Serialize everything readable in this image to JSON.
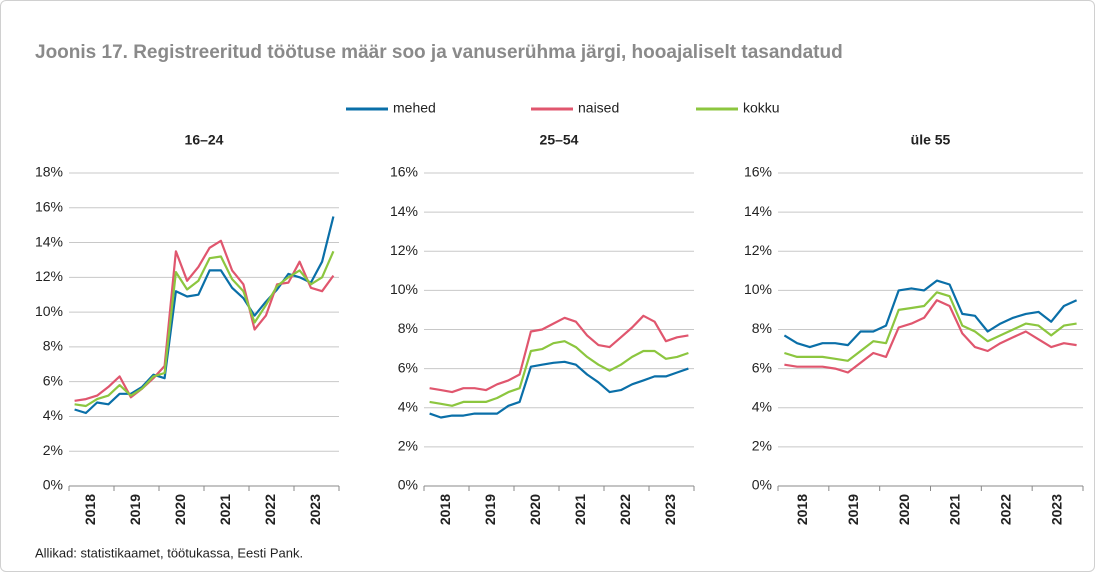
{
  "title": "Joonis 17. Registreeritud töötuse määr soo ja vanuserühma järgi, hooajaliselt tasandatud",
  "source": "Allikad: statistikaamet, töötukassa, Eesti Pank.",
  "chart_data": [
    {
      "type": "line",
      "title": "16–24",
      "categories": [
        "2018",
        null,
        null,
        null,
        "2019",
        null,
        null,
        null,
        "2020",
        null,
        null,
        null,
        "2021",
        null,
        null,
        null,
        "2022",
        null,
        null,
        null,
        "2023",
        null,
        null,
        null
      ],
      "ylim": [
        0,
        18
      ],
      "yticks": [
        {
          "value": 0,
          "label": "0%"
        },
        {
          "value": 2,
          "label": "2%"
        },
        {
          "value": 4,
          "label": "4%"
        },
        {
          "value": 6,
          "label": "6%"
        },
        {
          "value": 8,
          "label": "8%"
        },
        {
          "value": 10,
          "label": "10%"
        },
        {
          "value": 12,
          "label": "12%"
        },
        {
          "value": 14,
          "label": "14%"
        },
        {
          "value": 16,
          "label": "16%"
        },
        {
          "value": 18,
          "label": "18%"
        }
      ],
      "grid": true,
      "series": [
        {
          "name": "mehed",
          "color": "#0a6fa8",
          "values": [
            4.4,
            4.2,
            4.8,
            4.7,
            5.3,
            5.3,
            5.7,
            6.4,
            6.2,
            11.2,
            10.9,
            11.0,
            12.4,
            12.4,
            11.4,
            10.8,
            9.8,
            10.6,
            11.3,
            12.2,
            12.0,
            11.7,
            12.9,
            15.5
          ]
        },
        {
          "name": "naised",
          "color": "#e0566e",
          "values": [
            4.9,
            5.0,
            5.2,
            5.7,
            6.3,
            5.1,
            5.6,
            6.2,
            6.9,
            13.5,
            11.8,
            12.6,
            13.7,
            14.1,
            12.4,
            11.6,
            9.0,
            9.8,
            11.6,
            11.7,
            12.9,
            11.4,
            11.2,
            12.1
          ]
        },
        {
          "name": "kokku",
          "color": "#8cc63f",
          "values": [
            4.7,
            4.6,
            5.0,
            5.2,
            5.8,
            5.2,
            5.6,
            6.3,
            6.5,
            12.3,
            11.3,
            11.8,
            13.1,
            13.2,
            11.9,
            11.2,
            9.4,
            10.4,
            11.5,
            12.0,
            12.4,
            11.6,
            12.0,
            13.5
          ]
        }
      ]
    },
    {
      "type": "line",
      "title": "25–54",
      "categories": [
        "2018",
        null,
        null,
        null,
        "2019",
        null,
        null,
        null,
        "2020",
        null,
        null,
        null,
        "2021",
        null,
        null,
        null,
        "2022",
        null,
        null,
        null,
        "2023",
        null,
        null,
        null
      ],
      "ylim": [
        0,
        16
      ],
      "yticks": [
        {
          "value": 0,
          "label": "0%"
        },
        {
          "value": 2,
          "label": "2%"
        },
        {
          "value": 4,
          "label": "4%"
        },
        {
          "value": 6,
          "label": "6%"
        },
        {
          "value": 8,
          "label": "8%"
        },
        {
          "value": 10,
          "label": "10%"
        },
        {
          "value": 12,
          "label": "12%"
        },
        {
          "value": 14,
          "label": "14%"
        },
        {
          "value": 16,
          "label": "16%"
        }
      ],
      "grid": true,
      "series": [
        {
          "name": "mehed",
          "color": "#0a6fa8",
          "values": [
            3.7,
            3.5,
            3.6,
            3.6,
            3.7,
            3.7,
            3.7,
            4.1,
            4.3,
            6.1,
            6.2,
            6.3,
            6.35,
            6.2,
            5.7,
            5.3,
            4.8,
            4.9,
            5.2,
            5.4,
            5.6,
            5.6,
            5.8,
            6.0
          ]
        },
        {
          "name": "naised",
          "color": "#e0566e",
          "values": [
            5.0,
            4.9,
            4.8,
            5.0,
            5.0,
            4.9,
            5.2,
            5.4,
            5.7,
            7.9,
            8.0,
            8.3,
            8.6,
            8.4,
            7.7,
            7.2,
            7.1,
            7.6,
            8.1,
            8.7,
            8.4,
            7.4,
            7.6,
            7.7
          ]
        },
        {
          "name": "kokku",
          "color": "#8cc63f",
          "values": [
            4.3,
            4.2,
            4.1,
            4.3,
            4.3,
            4.3,
            4.5,
            4.8,
            5.0,
            6.9,
            7.0,
            7.3,
            7.4,
            7.1,
            6.6,
            6.2,
            5.9,
            6.2,
            6.6,
            6.9,
            6.9,
            6.5,
            6.6,
            6.8
          ]
        }
      ]
    },
    {
      "type": "line",
      "title": "üle 55",
      "categories": [
        "2018",
        null,
        null,
        null,
        "2019",
        null,
        null,
        null,
        "2020",
        null,
        null,
        null,
        "2021",
        null,
        null,
        null,
        "2022",
        null,
        null,
        null,
        "2023",
        null,
        null,
        null
      ],
      "ylim": [
        0,
        16
      ],
      "yticks": [
        {
          "value": 0,
          "label": "0%"
        },
        {
          "value": 2,
          "label": "2%"
        },
        {
          "value": 4,
          "label": "4%"
        },
        {
          "value": 6,
          "label": "6%"
        },
        {
          "value": 8,
          "label": "8%"
        },
        {
          "value": 10,
          "label": "10%"
        },
        {
          "value": 12,
          "label": "12%"
        },
        {
          "value": 14,
          "label": "14%"
        },
        {
          "value": 16,
          "label": "16%"
        }
      ],
      "grid": true,
      "series": [
        {
          "name": "mehed",
          "color": "#0a6fa8",
          "values": [
            7.7,
            7.3,
            7.1,
            7.3,
            7.3,
            7.2,
            7.9,
            7.9,
            8.2,
            10.0,
            10.1,
            10.0,
            10.5,
            10.3,
            8.8,
            8.7,
            7.9,
            8.3,
            8.6,
            8.8,
            8.9,
            8.4,
            9.2,
            9.5
          ]
        },
        {
          "name": "naised",
          "color": "#e0566e",
          "values": [
            6.2,
            6.1,
            6.1,
            6.1,
            6.0,
            5.8,
            6.3,
            6.8,
            6.6,
            8.1,
            8.3,
            8.6,
            9.5,
            9.2,
            7.8,
            7.1,
            6.9,
            7.3,
            7.6,
            7.9,
            7.5,
            7.1,
            7.3,
            7.2
          ]
        },
        {
          "name": "kokku",
          "color": "#8cc63f",
          "values": [
            6.8,
            6.6,
            6.6,
            6.6,
            6.5,
            6.4,
            6.9,
            7.4,
            7.3,
            9.0,
            9.1,
            9.2,
            9.9,
            9.7,
            8.2,
            7.9,
            7.4,
            7.7,
            8.0,
            8.3,
            8.2,
            7.7,
            8.2,
            8.3
          ]
        }
      ]
    }
  ]
}
